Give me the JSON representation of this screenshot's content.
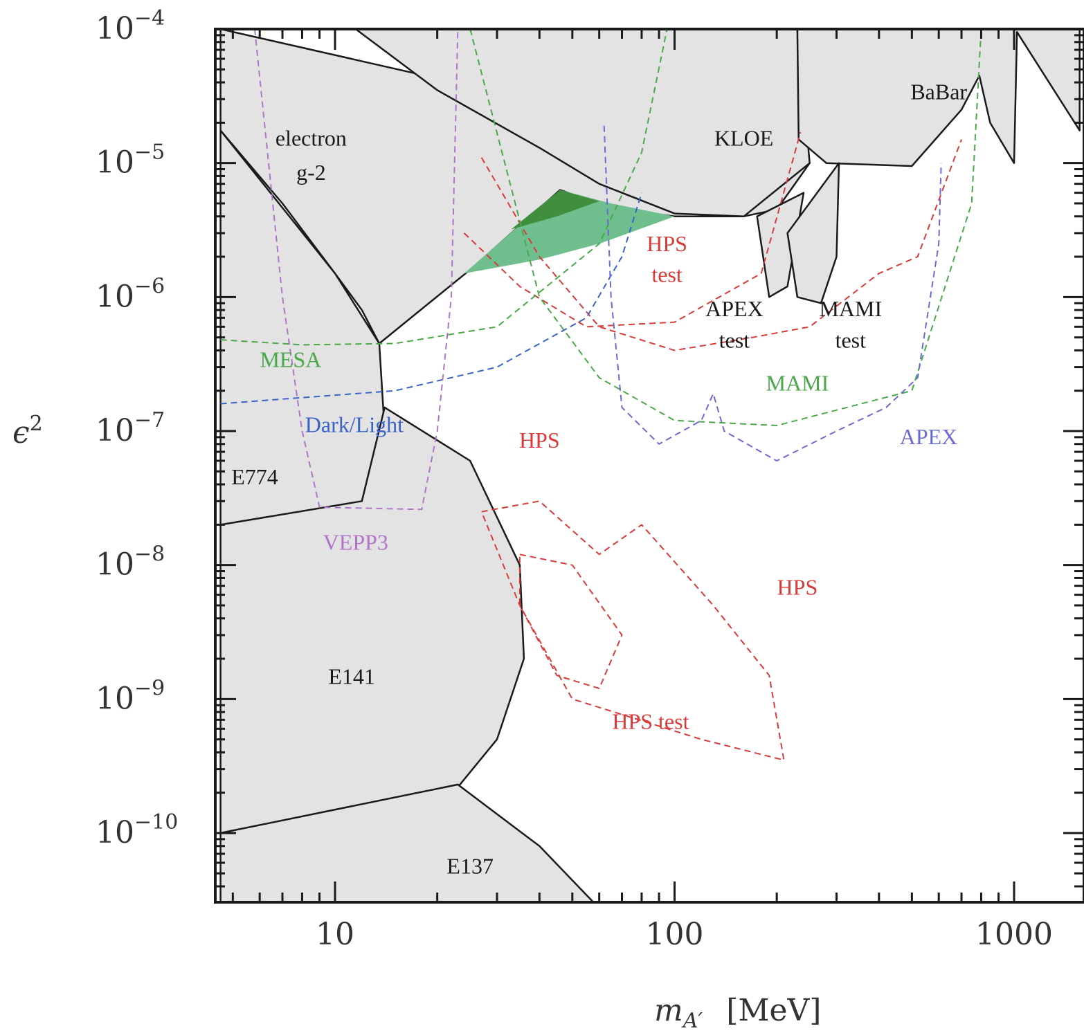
{
  "chart_data": {
    "type": "area",
    "title": "",
    "xlabel": "m",
    "xlabel_sub": "A′",
    "xlabel_unit": "[MeV]",
    "ylabel": "ϵ",
    "ylabel_sup": "2",
    "x_scale": "log",
    "y_scale": "log",
    "xlim": [
      4.6,
      1560
    ],
    "ylim": [
      3e-11,
      0.0001
    ],
    "x_ticks": [
      {
        "value": 10,
        "label": "10"
      },
      {
        "value": 100,
        "label": "100"
      },
      {
        "value": 1000,
        "label": "1000"
      }
    ],
    "y_ticks": [
      {
        "value": 0.0001,
        "base": "10",
        "exp": "−4"
      },
      {
        "value": 1e-05,
        "base": "10",
        "exp": "−5"
      },
      {
        "value": 1e-06,
        "base": "10",
        "exp": "−6"
      },
      {
        "value": 1e-07,
        "base": "10",
        "exp": "−7"
      },
      {
        "value": 1e-08,
        "base": "10",
        "exp": "−8"
      },
      {
        "value": 1e-09,
        "base": "10",
        "exp": "−9"
      },
      {
        "value": 1e-10,
        "base": "10",
        "exp": "−10"
      }
    ],
    "colors": {
      "excluded_fill": "#e3e3e3",
      "excluded_line": "#1a1a1a",
      "hps": "#d93a3a",
      "mami": "#4aa84a",
      "mesa": "#4aa84a",
      "darklight": "#3a63c9",
      "apex": "#6a6ad2",
      "vepp3": "#b074c8",
      "green_dark": "#3f8f3f",
      "green_light": "#6fbf8e"
    },
    "excluded_regions": [
      {
        "name": "electron g-2",
        "points": [
          [
            4.6,
            0.0001
          ],
          [
            4.6,
            1.75e-05
          ],
          [
            7,
            5e-06
          ],
          [
            10,
            1.5e-06
          ],
          [
            12,
            8e-07
          ],
          [
            13.5,
            4.5e-07
          ],
          [
            25,
            1.6e-06
          ],
          [
            46,
            6.3e-06
          ],
          [
            65,
            4.6e-06
          ],
          [
            100,
            4e-06
          ],
          [
            160,
            4e-06
          ],
          [
            200,
            4.5e-06
          ],
          [
            250,
            1e-05
          ],
          [
            4.6,
            0.0001
          ]
        ],
        "note": "boundary from 10^-4 at ~12 MeV down"
      },
      {
        "name": "KLOE",
        "points": [
          [
            11.5,
            0.0001
          ],
          [
            20,
            3.5e-05
          ],
          [
            40,
            1.3e-05
          ],
          [
            60,
            7e-06
          ],
          [
            100,
            4.2e-06
          ],
          [
            160,
            4e-06
          ],
          [
            250,
            1e-05
          ],
          [
            230,
            0.0001
          ]
        ]
      },
      {
        "name": "BaBar",
        "points": [
          [
            230,
            0.0001
          ],
          [
            232,
            1.5e-05
          ],
          [
            280,
            1e-05
          ],
          [
            500,
            9.5e-06
          ],
          [
            700,
            2.5e-05
          ],
          [
            790,
            4.5e-05
          ],
          [
            850,
            2e-05
          ],
          [
            1000,
            1e-05
          ],
          [
            1020,
            9.5e-05
          ],
          [
            1560,
            1.75e-05
          ],
          [
            1560,
            0.0001
          ]
        ]
      },
      {
        "name": "APEX test",
        "points": [
          [
            175,
            4e-06
          ],
          [
            190,
            1e-06
          ],
          [
            215,
            1.2e-06
          ],
          [
            240,
            6e-06
          ]
        ]
      },
      {
        "name": "MAMI test",
        "points": [
          [
            215,
            3e-06
          ],
          [
            230,
            1e-06
          ],
          [
            270,
            9e-07
          ],
          [
            300,
            2e-06
          ],
          [
            305,
            1e-05
          ]
        ]
      },
      {
        "name": "E774",
        "points": [
          [
            4.6,
            2e-08
          ],
          [
            8,
            2.1e-08
          ],
          [
            12,
            3e-08
          ],
          [
            14,
            1e-07
          ],
          [
            13.5,
            4.5e-07
          ],
          [
            10,
            1.5e-06
          ],
          [
            4.6,
            1.75e-05
          ]
        ]
      },
      {
        "name": "E141",
        "points": [
          [
            4.6,
            2e-08
          ],
          [
            12,
            3e-08
          ],
          [
            14,
            1.5e-07
          ],
          [
            25,
            6e-08
          ],
          [
            35,
            1e-08
          ],
          [
            36,
            2e-09
          ],
          [
            30,
            5e-10
          ],
          [
            23,
            2.2e-10
          ],
          [
            18,
            1e-10
          ],
          [
            10,
            8e-11
          ],
          [
            4.6,
            1e-10
          ]
        ]
      },
      {
        "name": "E137",
        "points": [
          [
            23,
            2.3e-10
          ],
          [
            40,
            8e-11
          ],
          [
            58,
            3e-11
          ],
          [
            4.6,
            3e-11
          ],
          [
            4.6,
            1e-10
          ]
        ]
      }
    ],
    "series": [
      {
        "name": "HPS",
        "group": "hps-upper",
        "color": "#d93a3a",
        "points": [
          [
            27,
            1.1e-05
          ],
          [
            40,
            2e-06
          ],
          [
            60,
            6e-07
          ],
          [
            100,
            4e-07
          ],
          [
            170,
            5e-07
          ],
          [
            250,
            6e-07
          ],
          [
            400,
            1.5e-06
          ],
          [
            520,
            2e-06
          ],
          [
            700,
            1.5e-05
          ]
        ]
      },
      {
        "name": "HPS test",
        "group": "hps-test-upper",
        "color": "#d93a3a",
        "points": [
          [
            24,
            3e-06
          ],
          [
            35,
            1.2e-06
          ],
          [
            55,
            6e-07
          ],
          [
            100,
            6.5e-07
          ],
          [
            180,
            1.5e-06
          ],
          [
            235,
            1.7e-05
          ]
        ]
      },
      {
        "name": "HPS",
        "group": "hps-lower",
        "color": "#d93a3a",
        "points": [
          [
            27,
            2.5e-08
          ],
          [
            40,
            3e-08
          ],
          [
            60,
            1.2e-08
          ],
          [
            80,
            2e-08
          ],
          [
            130,
            5e-09
          ],
          [
            190,
            1.5e-09
          ],
          [
            210,
            3.5e-10
          ],
          [
            120,
            5e-10
          ],
          [
            50,
            1e-09
          ],
          [
            35,
            5e-09
          ],
          [
            27,
            2.5e-08
          ]
        ]
      },
      {
        "name": "HPS test",
        "group": "hps-test-lower",
        "color": "#d93a3a",
        "points": [
          [
            35,
            1.2e-08
          ],
          [
            50,
            1e-08
          ],
          [
            70,
            3e-09
          ],
          [
            60,
            1.2e-09
          ],
          [
            45,
            1.5e-09
          ],
          [
            35,
            5e-09
          ],
          [
            35,
            1.2e-08
          ]
        ]
      },
      {
        "name": "MAMI",
        "group": "mami",
        "color": "#4aa84a",
        "points": [
          [
            25,
            0.0001
          ],
          [
            40,
            1e-06
          ],
          [
            60,
            2.5e-07
          ],
          [
            100,
            1.2e-07
          ],
          [
            200,
            1.1e-07
          ],
          [
            500,
            2e-07
          ],
          [
            750,
            5e-06
          ],
          [
            800,
            0.0001
          ]
        ]
      },
      {
        "name": "MESA",
        "group": "mesa",
        "color": "#4aa84a",
        "points": [
          [
            4.6,
            4.8e-07
          ],
          [
            8,
            4.4e-07
          ],
          [
            15,
            4.5e-07
          ],
          [
            30,
            6e-07
          ],
          [
            60,
            2.5e-06
          ],
          [
            80,
            1.2e-05
          ],
          [
            95,
            0.0001
          ]
        ]
      },
      {
        "name": "Dark/Light",
        "group": "darklight",
        "color": "#3a63c9",
        "points": [
          [
            4.6,
            1.6e-07
          ],
          [
            15,
            2e-07
          ],
          [
            30,
            3e-07
          ],
          [
            55,
            7e-07
          ],
          [
            70,
            2e-06
          ],
          [
            80,
            6e-06
          ]
        ]
      },
      {
        "name": "APEX",
        "group": "apex",
        "color": "#6a6ad2",
        "points": [
          [
            62,
            1.9e-05
          ],
          [
            65,
            1e-06
          ],
          [
            70,
            1.5e-07
          ],
          [
            90,
            8e-08
          ],
          [
            120,
            1.2e-07
          ],
          [
            130,
            1.9e-07
          ],
          [
            140,
            1e-07
          ],
          [
            200,
            6e-08
          ],
          [
            300,
            1e-07
          ],
          [
            420,
            1.5e-07
          ],
          [
            520,
            2.5e-07
          ],
          [
            600,
            2.5e-06
          ],
          [
            610,
            1e-05
          ]
        ]
      },
      {
        "name": "VEPP3",
        "group": "vepp3",
        "color": "#b074c8",
        "points": [
          [
            5.8,
            0.0001
          ],
          [
            7,
            1e-06
          ],
          [
            8,
            1e-07
          ],
          [
            9,
            2.7e-08
          ],
          [
            18,
            2.6e-08
          ],
          [
            20,
            1e-07
          ],
          [
            22,
            1e-06
          ],
          [
            23,
            0.0001
          ]
        ]
      }
    ],
    "labels": [
      {
        "text": "electron",
        "x": 8.5,
        "y": 1.35e-05,
        "color": "#1a1a1a"
      },
      {
        "text": "g-2",
        "x": 8.5,
        "y": 7.5e-06,
        "color": "#1a1a1a"
      },
      {
        "text": "KLOE",
        "x": 160,
        "y": 1.35e-05,
        "color": "#1a1a1a"
      },
      {
        "text": "BaBar",
        "x": 600,
        "y": 3e-05,
        "color": "#1a1a1a"
      },
      {
        "text": "HPS",
        "x": 95,
        "y": 2.2e-06,
        "color": "#d93a3a"
      },
      {
        "text": "test",
        "x": 95,
        "y": 1.3e-06,
        "color": "#d93a3a"
      },
      {
        "text": "APEX",
        "x": 150,
        "y": 7.2e-07,
        "color": "#1a1a1a"
      },
      {
        "text": "test",
        "x": 150,
        "y": 4.2e-07,
        "color": "#1a1a1a"
      },
      {
        "text": "MAMI",
        "x": 330,
        "y": 7.2e-07,
        "color": "#1a1a1a"
      },
      {
        "text": "test",
        "x": 330,
        "y": 4.2e-07,
        "color": "#1a1a1a"
      },
      {
        "text": "MESA",
        "x": 7.4,
        "y": 3e-07,
        "color": "#4aa84a"
      },
      {
        "text": "MAMI",
        "x": 230,
        "y": 2e-07,
        "color": "#4aa84a"
      },
      {
        "text": "Dark/Light",
        "x": 11.4,
        "y": 9.8e-08,
        "color": "#3a63c9"
      },
      {
        "text": "HPS",
        "x": 40,
        "y": 7.5e-08,
        "color": "#d93a3a"
      },
      {
        "text": "APEX",
        "x": 560,
        "y": 8e-08,
        "color": "#6a6ad2"
      },
      {
        "text": "E774",
        "x": 5.8,
        "y": 4e-08,
        "color": "#1a1a1a"
      },
      {
        "text": "VEPP3",
        "x": 11.5,
        "y": 1.3e-08,
        "color": "#b074c8"
      },
      {
        "text": "HPS",
        "x": 230,
        "y": 6e-09,
        "color": "#d93a3a"
      },
      {
        "text": "E141",
        "x": 11.2,
        "y": 1.3e-09,
        "color": "#1a1a1a"
      },
      {
        "text": "HPS test",
        "x": 85,
        "y": 6e-10,
        "color": "#d93a3a"
      },
      {
        "text": "E137",
        "x": 25,
        "y": 5e-11,
        "color": "#1a1a1a"
      }
    ],
    "grid": false,
    "legend": "none"
  }
}
